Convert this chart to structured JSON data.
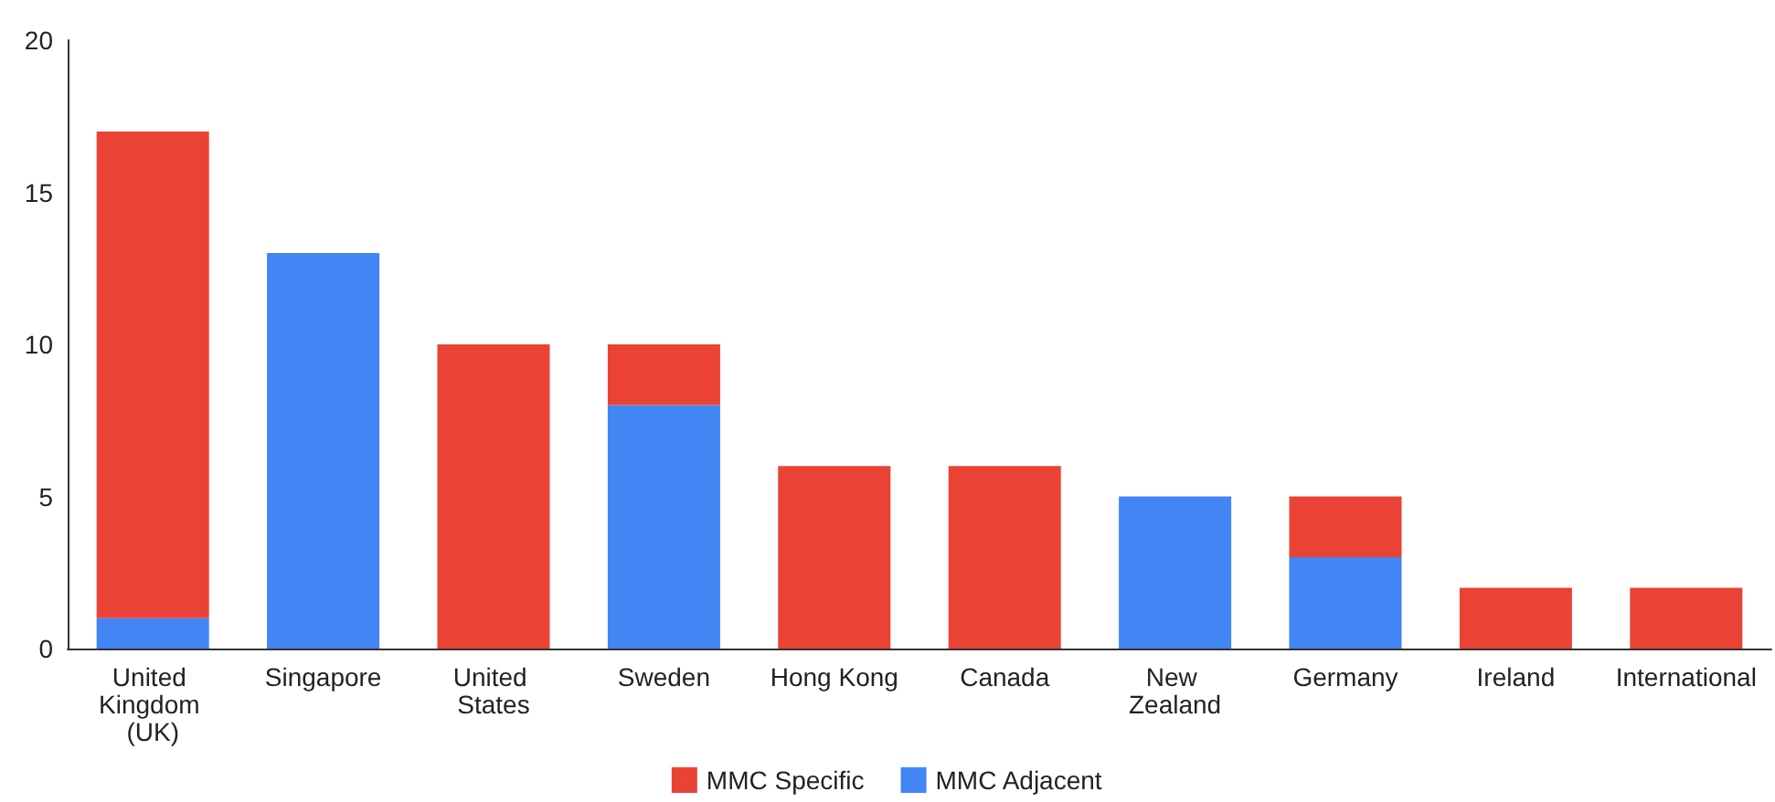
{
  "chart_data": {
    "type": "bar",
    "stacked": true,
    "categories": [
      "United Kingdom (UK)",
      "Singapore",
      "United States",
      "Sweden",
      "Hong Kong",
      "Canada",
      "New Zealand",
      "Germany",
      "Ireland",
      "International"
    ],
    "series": [
      {
        "name": "MMC Adjacent",
        "color": "#4285f4",
        "values": [
          1,
          13,
          0,
          8,
          0,
          0,
          5,
          3,
          0,
          0
        ]
      },
      {
        "name": "MMC Specific",
        "color": "#ea4335",
        "values": [
          16,
          0,
          10,
          2,
          6,
          6,
          0,
          2,
          2,
          2
        ]
      }
    ],
    "ylim": [
      0,
      20
    ],
    "yticks": [
      0,
      5,
      10,
      15,
      20
    ],
    "grid": false,
    "legend": "bottom"
  }
}
